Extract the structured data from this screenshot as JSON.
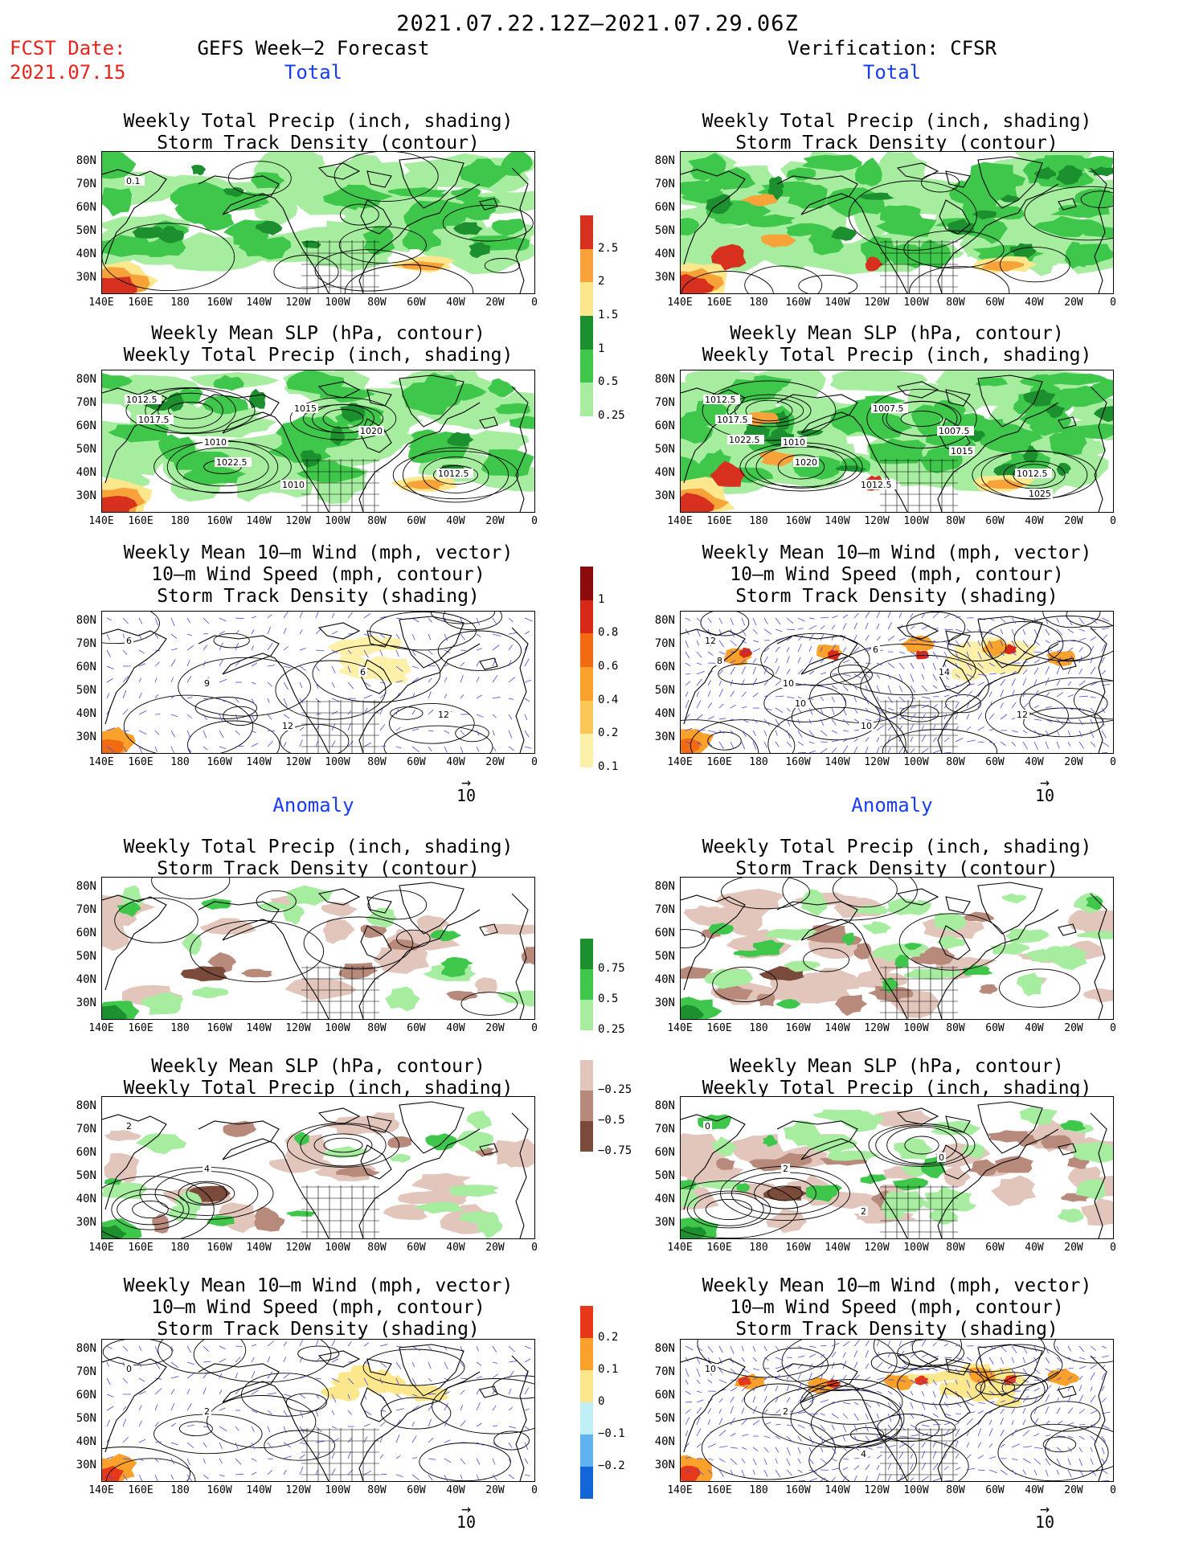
{
  "header": {
    "date_range": "2021.07.22.12Z–2021.07.29.06Z",
    "fcst_label": "FCST Date:",
    "fcst_date": "2021.07.15",
    "left_title": "GEFS Week–2 Forecast",
    "right_title": "Verification: CFSR"
  },
  "sections": {
    "total": "Total",
    "anomaly": "Anomaly"
  },
  "titles": {
    "precip_storm": [
      "Weekly Total Precip (inch, shading)",
      "Storm Track Density (contour)"
    ],
    "slp_precip": [
      "Weekly Mean SLP (hPa, contour)",
      "Weekly Total Precip (inch, shading)"
    ],
    "wind": [
      "Weekly Mean 10–m Wind (mph, vector)",
      "10–m Wind Speed (mph, contour)",
      "Storm Track Density (shading)"
    ]
  },
  "axes": {
    "lat_labels": [
      "80N",
      "70N",
      "60N",
      "50N",
      "40N",
      "30N"
    ],
    "lon_labels": [
      "140E",
      "160E",
      "180",
      "160W",
      "140W",
      "120W",
      "100W",
      "80W",
      "60W",
      "40W",
      "20W",
      "0"
    ]
  },
  "vector_ref": "10",
  "colorbars": {
    "precip_total": {
      "ticks": [
        "2.5",
        "2",
        "1.5",
        "1",
        "0.5",
        "0.25"
      ],
      "colors": [
        "#d7301f",
        "#f8a33a",
        "#fde78c",
        "#1c8f2e",
        "#3ec74a",
        "#a6eda0"
      ]
    },
    "storm_total": {
      "ticks": [
        "1",
        "0.8",
        "0.6",
        "0.4",
        "0.2",
        "0.1"
      ],
      "colors": [
        "#8b0a0a",
        "#d72818",
        "#f26b12",
        "#f9a12a",
        "#fbc858",
        "#fdf0a8"
      ]
    },
    "precip_anom": {
      "ticks": [
        "0.75",
        "0.5",
        "0.25",
        "−0.25",
        "−0.5",
        "−0.75"
      ],
      "colors": [
        "#1c8f2e",
        "#3ec74a",
        "#a6eda0",
        "#ffffff",
        "#e3c6bb",
        "#b88a7c",
        "#7a4a3a"
      ]
    },
    "storm_anom": {
      "ticks": [
        "0.2",
        "0.1",
        "0",
        "−0.1",
        "−0.2"
      ],
      "colors": [
        "#e8381a",
        "#f9a12a",
        "#fde78c",
        "#bff0f7",
        "#5fb3f0",
        "#1466d8"
      ]
    }
  },
  "contour_labels": {
    "p1l": [
      "0.1"
    ],
    "p2l": [
      "1012.5",
      "1010",
      "1010",
      "1020",
      "1012.5",
      "1017.5",
      "1022.5",
      "1015"
    ],
    "p2r": [
      "1012.5",
      "1010",
      "1012.5",
      "1007.5",
      "1012.5",
      "1017.5",
      "1020",
      "1007.5",
      "1015",
      "1025",
      "1022.5"
    ],
    "p3l": [
      "6",
      "9",
      "12",
      "6",
      "12"
    ],
    "p3r": [
      "12",
      "10",
      "10",
      "14",
      "12",
      "8",
      "10",
      "6"
    ],
    "p5l": [
      "2",
      "4"
    ],
    "p5r": [
      "0",
      "2",
      "2",
      "0"
    ],
    "p6l": [
      "0",
      "2"
    ],
    "p6r": [
      "10",
      "2",
      "4"
    ]
  }
}
